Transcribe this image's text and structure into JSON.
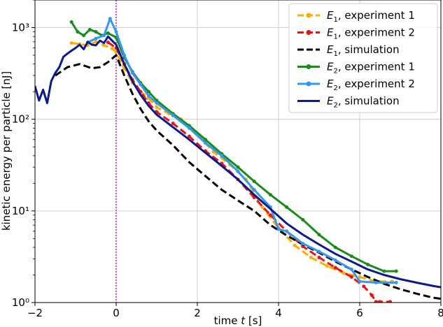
{
  "chart_data": {
    "type": "line",
    "title": "",
    "xlabel": "time t [s]",
    "ylabel": "kinetic energy per particle [nJ]",
    "xlim": [
      -2,
      8
    ],
    "ylim": [
      1,
      2000
    ],
    "yscale": "log",
    "grid": true,
    "legend_position": "top-right",
    "x_ticks": [
      -2,
      0,
      2,
      4,
      6,
      8
    ],
    "x_tick_labels": [
      "−2",
      "0",
      "2",
      "4",
      "6",
      "8"
    ],
    "y_ticks": [
      1,
      10,
      100,
      1000
    ],
    "y_tick_labels": [
      "10⁰",
      "10¹",
      "10²",
      "10³"
    ],
    "vline": {
      "x": 0,
      "color": "#d62bd6",
      "style": "dotted"
    },
    "series": [
      {
        "name": "E₁, experiment 1",
        "name_main": "E",
        "name_sub": "1",
        "name_rest": ", experiment 1",
        "color": "#ffae00",
        "dash": "10,5",
        "marker": true,
        "points": [
          [
            -1.1,
            680
          ],
          [
            -0.9,
            660
          ],
          [
            -0.7,
            640
          ],
          [
            -0.5,
            700
          ],
          [
            -0.3,
            640
          ],
          [
            -0.1,
            590
          ],
          [
            0,
            540
          ],
          [
            0.2,
            360
          ],
          [
            0.4,
            250
          ],
          [
            0.6,
            200
          ],
          [
            0.8,
            170
          ],
          [
            1.0,
            135
          ],
          [
            1.3,
            115
          ],
          [
            1.6,
            100
          ],
          [
            2.0,
            68
          ],
          [
            2.4,
            44
          ],
          [
            2.8,
            32
          ],
          [
            3.2,
            22
          ],
          [
            3.6,
            11
          ],
          [
            4.0,
            6.5
          ],
          [
            4.4,
            4.2
          ],
          [
            4.8,
            3.1
          ],
          [
            5.2,
            2.5
          ],
          [
            5.6,
            2.1
          ],
          [
            6.0,
            1.9
          ],
          [
            6.4,
            1.7
          ],
          [
            6.8,
            1.7
          ]
        ]
      },
      {
        "name": "E₁, experiment 2",
        "name_main": "E",
        "name_sub": "1",
        "name_rest": ", experiment 2",
        "color": "#ee1111",
        "dash": "10,5",
        "marker": true,
        "points": [
          [
            -0.2,
            690
          ],
          [
            0,
            600
          ],
          [
            0.2,
            400
          ],
          [
            0.4,
            270
          ],
          [
            0.6,
            200
          ],
          [
            0.8,
            150
          ],
          [
            1.0,
            120
          ],
          [
            1.4,
            90
          ],
          [
            1.8,
            65
          ],
          [
            2.2,
            45
          ],
          [
            2.6,
            33
          ],
          [
            3.0,
            22
          ],
          [
            3.4,
            14
          ],
          [
            3.8,
            9
          ],
          [
            4.2,
            6
          ],
          [
            4.6,
            4.1
          ],
          [
            5.0,
            3.1
          ],
          [
            5.4,
            2.4
          ],
          [
            5.8,
            1.9
          ],
          [
            6.1,
            1.5
          ],
          [
            6.3,
            1.2
          ],
          [
            6.4,
            1.02
          ],
          [
            6.5,
            1.02
          ],
          [
            6.75,
            1.02
          ]
        ]
      },
      {
        "name": "E₁, simulation",
        "name_main": "E",
        "name_sub": "1",
        "name_rest": ", simulation",
        "color": "#000000",
        "dash": "10,5",
        "marker": false,
        "points": [
          [
            -1.5,
            300
          ],
          [
            -1.2,
            370
          ],
          [
            -0.9,
            400
          ],
          [
            -0.6,
            360
          ],
          [
            -0.4,
            370
          ],
          [
            -0.2,
            420
          ],
          [
            0,
            500
          ],
          [
            0.2,
            300
          ],
          [
            0.4,
            190
          ],
          [
            0.6,
            130
          ],
          [
            0.8,
            95
          ],
          [
            1.0,
            75
          ],
          [
            1.4,
            52
          ],
          [
            1.8,
            34
          ],
          [
            2.2,
            24
          ],
          [
            2.6,
            17
          ],
          [
            3.0,
            13
          ],
          [
            3.4,
            10
          ],
          [
            3.8,
            7
          ],
          [
            4.2,
            5.4
          ],
          [
            4.6,
            4.3
          ],
          [
            5.0,
            3.5
          ],
          [
            5.4,
            2.8
          ],
          [
            5.8,
            2.3
          ],
          [
            6.2,
            1.9
          ],
          [
            6.6,
            1.6
          ],
          [
            7.0,
            1.4
          ],
          [
            7.4,
            1.25
          ],
          [
            7.8,
            1.13
          ],
          [
            8,
            1.1
          ]
        ]
      },
      {
        "name": "E₂, experiment 1",
        "name_main": "E",
        "name_sub": "2",
        "name_rest": ", experiment 1",
        "color": "#1a8a1a",
        "dash": "",
        "marker": true,
        "points": [
          [
            -1.1,
            1150
          ],
          [
            -0.95,
            900
          ],
          [
            -0.8,
            820
          ],
          [
            -0.65,
            950
          ],
          [
            -0.5,
            900
          ],
          [
            -0.35,
            820
          ],
          [
            -0.2,
            870
          ],
          [
            0,
            780
          ],
          [
            0.2,
            470
          ],
          [
            0.4,
            330
          ],
          [
            0.6,
            250
          ],
          [
            0.8,
            200
          ],
          [
            1.0,
            160
          ],
          [
            1.4,
            115
          ],
          [
            1.8,
            85
          ],
          [
            2.2,
            60
          ],
          [
            2.6,
            42
          ],
          [
            3.0,
            30
          ],
          [
            3.4,
            21
          ],
          [
            3.8,
            15
          ],
          [
            4.2,
            11
          ],
          [
            4.6,
            8
          ],
          [
            5.0,
            5.5
          ],
          [
            5.4,
            4
          ],
          [
            5.8,
            3.2
          ],
          [
            6.2,
            2.6
          ],
          [
            6.6,
            2.2
          ],
          [
            6.9,
            2.2
          ]
        ]
      },
      {
        "name": "E₂, experiment 2",
        "name_main": "E",
        "name_sub": "2",
        "name_rest": ", experiment 2",
        "color": "#3399ee",
        "dash": "",
        "marker": true,
        "points": [
          [
            -0.7,
            690
          ],
          [
            -0.5,
            760
          ],
          [
            -0.3,
            820
          ],
          [
            -0.15,
            1250
          ],
          [
            0,
            900
          ],
          [
            0.2,
            500
          ],
          [
            0.4,
            320
          ],
          [
            0.6,
            240
          ],
          [
            0.8,
            180
          ],
          [
            1.0,
            150
          ],
          [
            1.4,
            110
          ],
          [
            1.8,
            80
          ],
          [
            2.2,
            55
          ],
          [
            2.6,
            40
          ],
          [
            3.0,
            27
          ],
          [
            3.4,
            17
          ],
          [
            3.8,
            11
          ],
          [
            4.0,
            6.3
          ],
          [
            4.2,
            6.0
          ],
          [
            4.6,
            4.4
          ],
          [
            5.0,
            3.6
          ],
          [
            5.4,
            2.9
          ],
          [
            5.8,
            2.3
          ],
          [
            6.0,
            1.7
          ],
          [
            6.4,
            1.65
          ],
          [
            6.9,
            1.65
          ]
        ]
      },
      {
        "name": "E₂, simulation",
        "name_main": "E",
        "name_sub": "2",
        "name_rest": ", simulation",
        "color": "#0b1a8c",
        "dash": "",
        "marker": false,
        "points": [
          [
            -2,
            230
          ],
          [
            -1.9,
            160
          ],
          [
            -1.8,
            210
          ],
          [
            -1.7,
            150
          ],
          [
            -1.6,
            260
          ],
          [
            -1.5,
            320
          ],
          [
            -1.4,
            370
          ],
          [
            -1.3,
            480
          ],
          [
            -1.2,
            520
          ],
          [
            -1.1,
            560
          ],
          [
            -1.0,
            600
          ],
          [
            -0.9,
            650
          ],
          [
            -0.8,
            580
          ],
          [
            -0.7,
            700
          ],
          [
            -0.6,
            650
          ],
          [
            -0.5,
            640
          ],
          [
            -0.4,
            720
          ],
          [
            -0.3,
            680
          ],
          [
            -0.2,
            800
          ],
          [
            -0.1,
            720
          ],
          [
            0,
            650
          ],
          [
            0.2,
            400
          ],
          [
            0.4,
            260
          ],
          [
            0.6,
            185
          ],
          [
            0.8,
            140
          ],
          [
            1.0,
            112
          ],
          [
            1.4,
            82
          ],
          [
            1.8,
            60
          ],
          [
            2.2,
            43
          ],
          [
            2.6,
            31
          ],
          [
            3.0,
            22
          ],
          [
            3.4,
            15
          ],
          [
            3.8,
            10.5
          ],
          [
            4.2,
            7.3
          ],
          [
            4.6,
            5.5
          ],
          [
            5.0,
            4.3
          ],
          [
            5.4,
            3.4
          ],
          [
            5.8,
            2.8
          ],
          [
            6.2,
            2.3
          ],
          [
            6.6,
            2
          ],
          [
            7.0,
            1.8
          ],
          [
            7.4,
            1.65
          ],
          [
            7.8,
            1.52
          ],
          [
            8,
            1.47
          ]
        ]
      }
    ]
  }
}
